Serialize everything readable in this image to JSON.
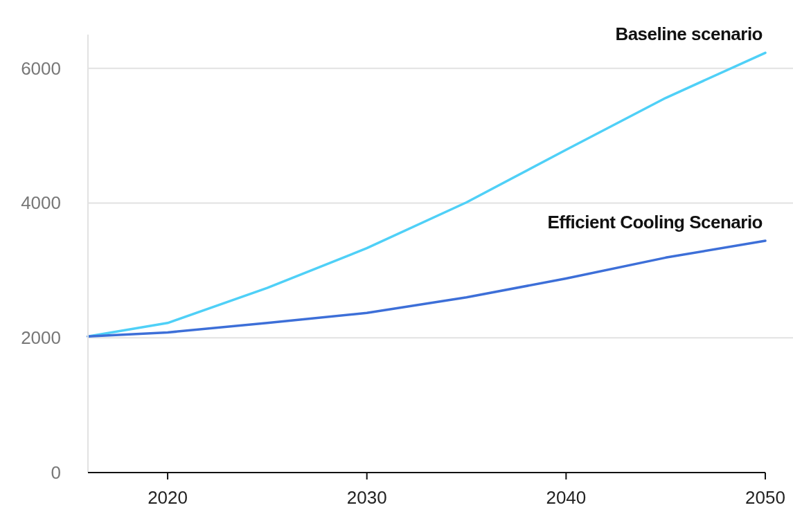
{
  "chart_data": {
    "type": "line",
    "x": [
      2016,
      2020,
      2025,
      2030,
      2035,
      2040,
      2045,
      2050
    ],
    "series": [
      {
        "name": "Baseline scenario",
        "color": "#4fd0f7",
        "values": [
          2020,
          2220,
          2740,
          3330,
          4010,
          4790,
          5560,
          6230
        ]
      },
      {
        "name": "Efficient Cooling Scenario",
        "color": "#3d6fd8",
        "values": [
          2020,
          2080,
          2220,
          2370,
          2600,
          2880,
          3190,
          3440
        ]
      }
    ],
    "xlim": [
      2016,
      2050
    ],
    "xticks": [
      2020,
      2030,
      2040,
      2050
    ],
    "ylim": [
      0,
      6500
    ],
    "yticks": [
      0,
      2000,
      4000,
      6000
    ],
    "grid": "y",
    "marker": "none",
    "line_style": "solid"
  }
}
